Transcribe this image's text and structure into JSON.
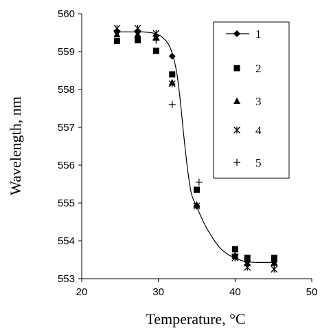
{
  "chart_data": {
    "type": "scatter",
    "xlabel": "Temperature, °C",
    "ylabel": "Wavelength, nm",
    "xlim": [
      20,
      50
    ],
    "ylim": [
      553,
      560
    ],
    "xticks": [
      20,
      30,
      40,
      50
    ],
    "yticks": [
      553,
      554,
      555,
      556,
      557,
      558,
      559,
      560
    ],
    "grid": false,
    "legend_position": "top-right",
    "series": [
      {
        "name": "1",
        "marker": "diamond",
        "line": true,
        "points": [
          [
            24.6,
            559.52
          ],
          [
            27.3,
            559.52
          ],
          [
            29.7,
            559.42
          ],
          [
            31.8,
            558.88
          ],
          [
            35.0,
            554.92
          ],
          [
            40.0,
            553.6
          ],
          [
            41.6,
            553.45
          ],
          [
            45.1,
            553.45
          ]
        ]
      },
      {
        "name": "2",
        "marker": "square",
        "points": [
          [
            24.6,
            559.28
          ],
          [
            27.3,
            559.3
          ],
          [
            29.7,
            559.02
          ],
          [
            31.8,
            558.4
          ],
          [
            35.0,
            555.35
          ],
          [
            40.0,
            553.78
          ],
          [
            41.6,
            553.55
          ],
          [
            45.1,
            553.55
          ]
        ]
      },
      {
        "name": "3",
        "marker": "triangle",
        "points": [
          [
            24.6,
            559.45
          ],
          [
            27.3,
            559.45
          ],
          [
            29.7,
            559.38
          ],
          [
            31.8,
            558.18
          ],
          [
            35.0,
            554.95
          ],
          [
            40.0,
            553.6
          ],
          [
            41.6,
            553.4
          ],
          [
            45.1,
            553.42
          ]
        ]
      },
      {
        "name": "4",
        "marker": "asterisk",
        "points": [
          [
            24.6,
            559.62
          ],
          [
            27.3,
            559.62
          ],
          [
            29.7,
            559.48
          ],
          [
            31.8,
            558.15
          ],
          [
            35.0,
            554.92
          ],
          [
            40.0,
            553.55
          ],
          [
            41.6,
            553.3
          ],
          [
            45.1,
            553.25
          ]
        ]
      },
      {
        "name": "5",
        "marker": "plus",
        "points": [
          [
            24.6,
            559.55
          ],
          [
            27.3,
            559.55
          ],
          [
            29.7,
            559.3
          ],
          [
            31.8,
            557.6
          ],
          [
            35.3,
            555.55
          ],
          [
            40.0,
            553.65
          ],
          [
            41.6,
            553.45
          ],
          [
            45.1,
            553.35
          ]
        ]
      }
    ],
    "fit_curve": {
      "series": "1",
      "points": [
        [
          24.6,
          559.52
        ],
        [
          26.0,
          559.52
        ],
        [
          28.0,
          559.52
        ],
        [
          29.5,
          559.48
        ],
        [
          30.5,
          559.38
        ],
        [
          31.5,
          559.12
        ],
        [
          32.3,
          558.55
        ],
        [
          32.8,
          557.8
        ],
        [
          33.3,
          556.8
        ],
        [
          33.8,
          555.9
        ],
        [
          34.3,
          555.25
        ],
        [
          35.0,
          554.9
        ],
        [
          36.0,
          554.45
        ],
        [
          37.0,
          554.1
        ],
        [
          38.0,
          553.82
        ],
        [
          39.0,
          553.65
        ],
        [
          40.0,
          553.55
        ],
        [
          41.0,
          553.47
        ],
        [
          42.0,
          553.44
        ],
        [
          43.0,
          553.43
        ],
        [
          45.1,
          553.43
        ]
      ]
    }
  }
}
